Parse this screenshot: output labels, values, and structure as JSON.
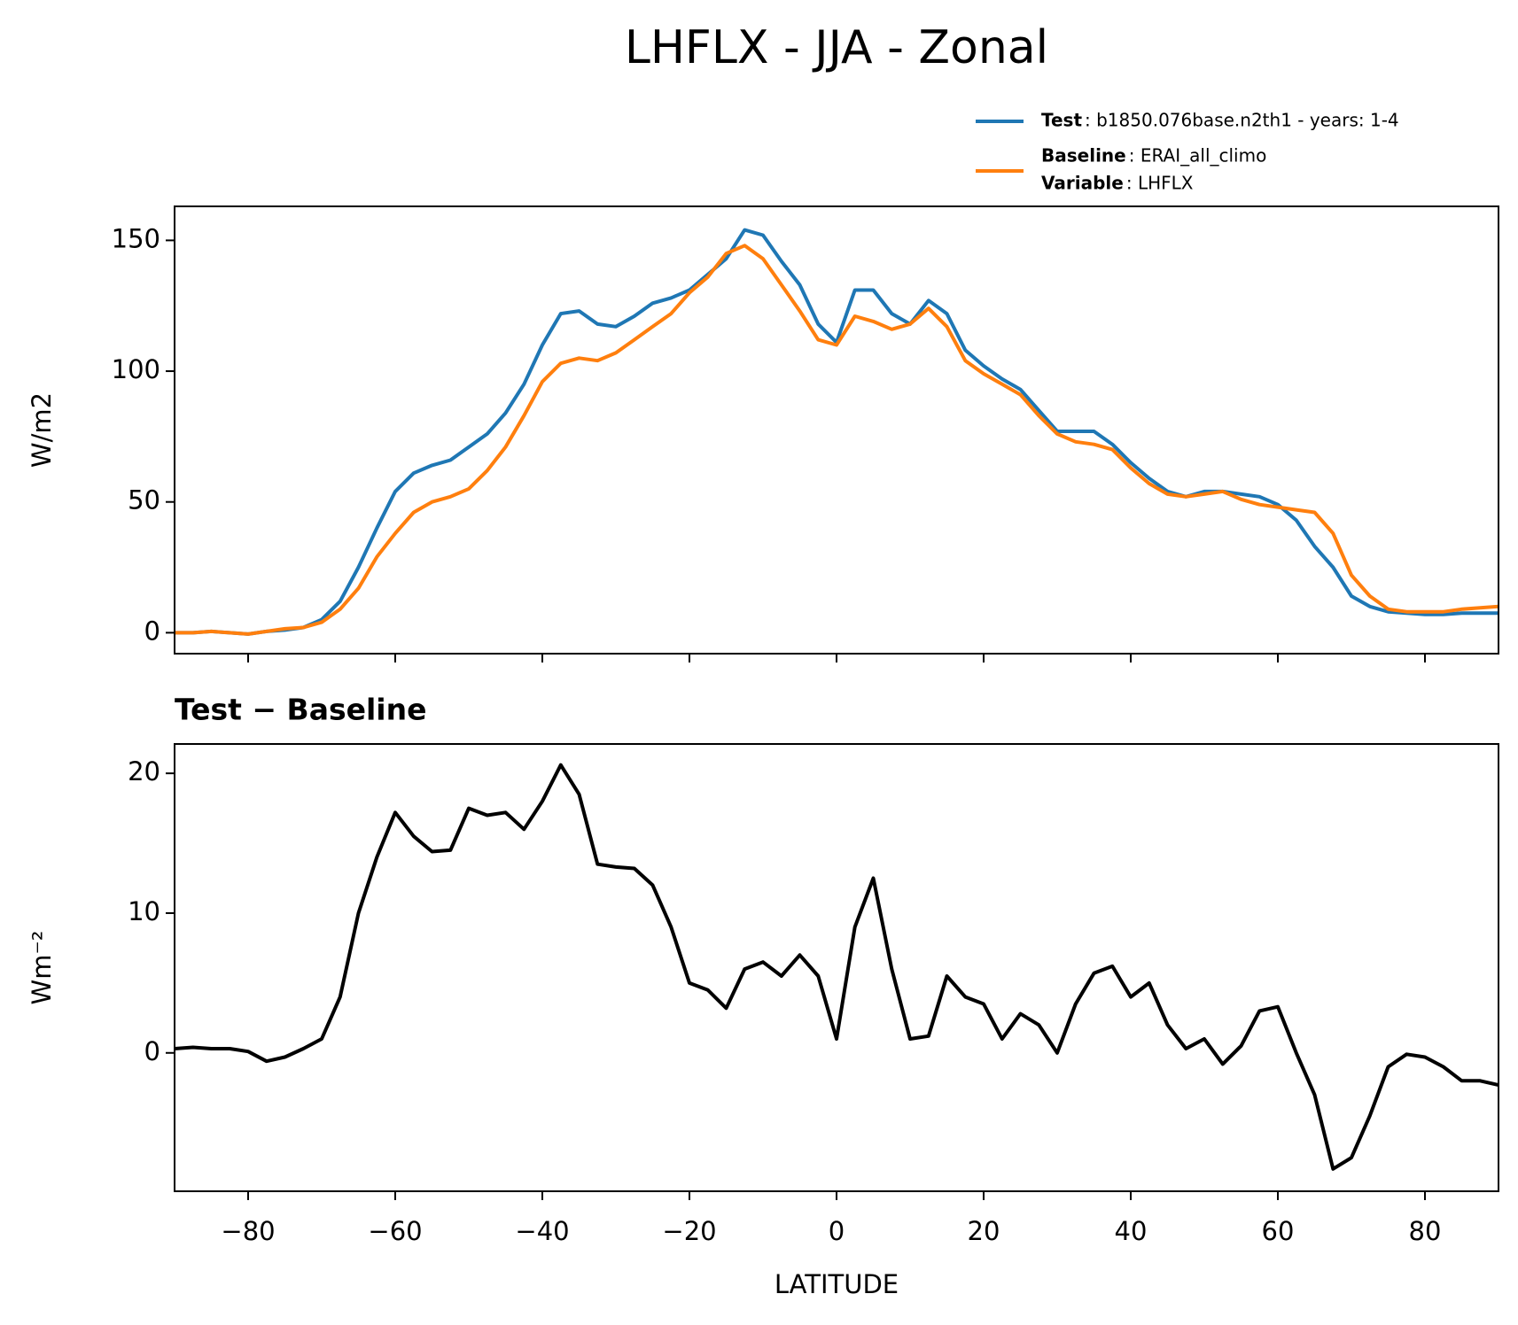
{
  "title": "LHFLX - JJA - Zonal",
  "chart_data": [
    {
      "type": "line",
      "ylabel": "W/m2",
      "x": [
        -90,
        -87.5,
        -85,
        -82.5,
        -80,
        -77.5,
        -75,
        -72.5,
        -70,
        -67.5,
        -65,
        -62.5,
        -60,
        -57.5,
        -55,
        -52.5,
        -50,
        -47.5,
        -45,
        -42.5,
        -40,
        -37.5,
        -35,
        -32.5,
        -30,
        -27.5,
        -25,
        -22.5,
        -20,
        -17.5,
        -15,
        -12.5,
        -10,
        -7.5,
        -5,
        -2.5,
        0,
        2.5,
        5,
        7.5,
        10,
        12.5,
        15,
        17.5,
        20,
        22.5,
        25,
        27.5,
        30,
        32.5,
        35,
        37.5,
        40,
        42.5,
        45,
        47.5,
        50,
        52.5,
        55,
        57.5,
        60,
        62.5,
        65,
        67.5,
        70,
        72.5,
        75,
        77.5,
        80,
        82.5,
        85,
        87.5,
        90
      ],
      "series": [
        {
          "name": "Test",
          "description": ": b1850.076base.n2th1 - years: 1-4",
          "color": "#1f77b4",
          "values": [
            0,
            0,
            0.5,
            0,
            -0.5,
            0.5,
            1,
            2,
            5,
            12,
            25,
            40,
            54,
            61,
            64,
            66,
            71,
            76,
            84,
            95,
            110,
            122,
            123,
            118,
            117,
            121,
            126,
            128,
            131,
            137,
            143,
            154,
            152,
            142,
            133,
            118,
            111,
            131,
            131,
            122,
            118,
            127,
            122,
            108,
            102,
            97,
            93,
            85,
            77,
            77,
            77,
            72,
            65,
            59,
            54,
            52,
            54,
            54,
            53,
            52,
            49,
            43,
            33,
            25,
            14,
            10,
            8,
            7.5,
            7,
            7,
            7.5,
            7.5,
            7.5
          ]
        },
        {
          "name": "Baseline",
          "description": ": ERAI_all_climo",
          "color": "#ff7f0e",
          "values": [
            0,
            0,
            0.5,
            0,
            -0.5,
            0.5,
            1.5,
            2,
            4,
            9,
            17,
            29,
            38,
            46,
            50,
            52,
            55,
            62,
            71,
            83,
            96,
            103,
            105,
            104,
            107,
            112,
            117,
            122,
            130,
            136,
            145,
            148,
            143,
            133,
            123,
            112,
            110,
            121,
            119,
            116,
            118,
            124,
            117,
            104,
            99,
            95,
            91,
            83,
            76,
            73,
            72,
            70,
            63,
            57,
            53,
            52,
            53,
            54,
            51,
            49,
            48,
            47,
            46,
            38,
            22,
            14,
            9,
            8,
            8,
            8,
            9,
            9.5,
            10
          ]
        }
      ],
      "legend_extra": {
        "name": "Variable",
        "description": ": LHFLX"
      },
      "xlim": [
        -90,
        90
      ],
      "xticks": [
        -80,
        -60,
        -40,
        -20,
        0,
        20,
        40,
        60,
        80
      ],
      "ylim": [
        -8,
        163
      ],
      "yticks": [
        0,
        50,
        100,
        150
      ]
    },
    {
      "type": "line",
      "title": "Test − Baseline",
      "ylabel": "Wm⁻²",
      "xlabel": "LATITUDE",
      "color": "#000000",
      "x": [
        -90,
        -87.5,
        -85,
        -82.5,
        -80,
        -77.5,
        -75,
        -72.5,
        -70,
        -67.5,
        -65,
        -62.5,
        -60,
        -57.5,
        -55,
        -52.5,
        -50,
        -47.5,
        -45,
        -42.5,
        -40,
        -37.5,
        -35,
        -32.5,
        -30,
        -27.5,
        -25,
        -22.5,
        -20,
        -17.5,
        -15,
        -12.5,
        -10,
        -7.5,
        -5,
        -2.5,
        0,
        2.5,
        5,
        7.5,
        10,
        12.5,
        15,
        17.5,
        20,
        22.5,
        25,
        27.5,
        30,
        32.5,
        35,
        37.5,
        40,
        42.5,
        45,
        47.5,
        50,
        52.5,
        55,
        57.5,
        60,
        62.5,
        65,
        67.5,
        70,
        72.5,
        75,
        77.5,
        80,
        82.5,
        85,
        87.5,
        90
      ],
      "values": [
        0.3,
        0.4,
        0.3,
        0.3,
        0.1,
        -0.6,
        -0.3,
        0.3,
        1,
        4,
        10,
        14,
        17.2,
        15.5,
        14.4,
        14.5,
        17.5,
        17,
        17.2,
        16,
        18,
        20.6,
        18.5,
        13.5,
        13.3,
        13.2,
        12,
        9,
        5,
        4.5,
        3.2,
        6,
        6.5,
        5.5,
        7,
        5.5,
        1,
        9,
        12.5,
        6,
        1,
        1.2,
        5.5,
        4,
        3.5,
        1,
        2.8,
        2,
        0,
        3.5,
        5.7,
        6.2,
        4,
        5,
        2,
        0.3,
        1,
        -0.8,
        0.5,
        3,
        3.3,
        0,
        -3,
        -8.3,
        -7.5,
        -4.5,
        -1,
        -0.1,
        -0.3,
        -1,
        -2,
        -2,
        -2.3
      ],
      "xlim": [
        -90,
        90
      ],
      "xticks": [
        {
          "value": -80,
          "label": "−80"
        },
        {
          "value": -60,
          "label": "−60"
        },
        {
          "value": -40,
          "label": "−40"
        },
        {
          "value": -20,
          "label": "−20"
        },
        0,
        20,
        40,
        60,
        80
      ],
      "ylim": [
        -9.9,
        22.1
      ],
      "yticks": [
        0,
        10,
        20
      ]
    }
  ]
}
